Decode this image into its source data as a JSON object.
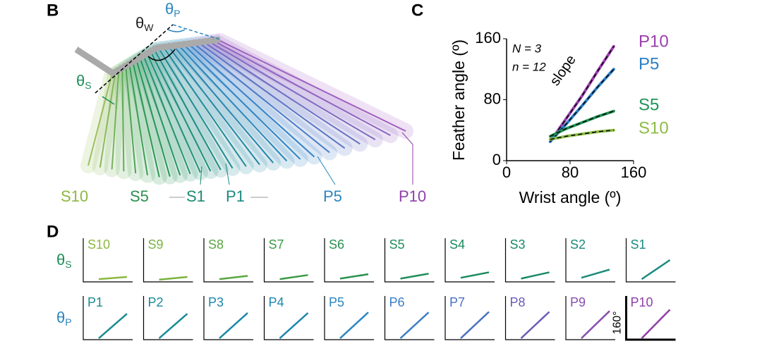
{
  "panel_labels": [
    "B",
    "C",
    "D"
  ],
  "panel_b": {
    "theta_w": {
      "symbol": "θ",
      "sub": "W"
    },
    "theta_p": {
      "symbol": "θ",
      "sub": "P"
    },
    "theta_s": {
      "symbol": "θ",
      "sub": "S"
    },
    "feather_labels": [
      "S10",
      "S5",
      "S1",
      "P1",
      "P5",
      "P10"
    ]
  },
  "panel_d": {
    "row_labels": [
      {
        "symbol": "θ",
        "sub": "S"
      },
      {
        "symbol": "θ",
        "sub": "P"
      }
    ],
    "scale_bar": "160°"
  },
  "chart_data": [
    {
      "type": "line",
      "x_label": "Wrist angle (º)",
      "y_label": "Feather angle (º)",
      "annotations": [
        "N = 3",
        "n = 12",
        "slope"
      ],
      "x": [
        55,
        75,
        95,
        115,
        135
      ],
      "xlim": [
        0,
        160
      ],
      "xticks": [
        0,
        80,
        160
      ],
      "ylim": [
        0,
        160
      ],
      "yticks": [
        0,
        80,
        160
      ],
      "series": [
        {
          "name": "P10",
          "color": "#9b3fae",
          "values": [
            25,
            55,
            85,
            118,
            150
          ]
        },
        {
          "name": "P5",
          "color": "#2b7fc4",
          "values": [
            25,
            48,
            72,
            97,
            120
          ]
        },
        {
          "name": "S5",
          "color": "#1f9457",
          "values": [
            32,
            42,
            50,
            58,
            65
          ]
        },
        {
          "name": "S10",
          "color": "#8cbd45",
          "values": [
            28,
            32,
            35,
            38,
            40
          ]
        }
      ]
    },
    {
      "type": "mini",
      "title": "S10",
      "color": "#8cb840",
      "values": [
        10,
        18
      ],
      "ylim": [
        0,
        160
      ]
    },
    {
      "type": "mini",
      "title": "S9",
      "color": "#7ab340",
      "values": [
        8,
        18
      ],
      "ylim": [
        0,
        160
      ]
    },
    {
      "type": "mini",
      "title": "S8",
      "color": "#5aa640",
      "values": [
        10,
        22
      ],
      "ylim": [
        0,
        160
      ]
    },
    {
      "type": "mini",
      "title": "S7",
      "color": "#3c9a45",
      "values": [
        10,
        25
      ],
      "ylim": [
        0,
        160
      ]
    },
    {
      "type": "mini",
      "title": "S6",
      "color": "#2a9150",
      "values": [
        12,
        28
      ],
      "ylim": [
        0,
        160
      ]
    },
    {
      "type": "mini",
      "title": "S5",
      "color": "#1e8f5a",
      "values": [
        12,
        30
      ],
      "ylim": [
        0,
        160
      ]
    },
    {
      "type": "mini",
      "title": "S4",
      "color": "#1a8a5e",
      "values": [
        15,
        35
      ],
      "ylim": [
        0,
        160
      ]
    },
    {
      "type": "mini",
      "title": "S3",
      "color": "#1a8a6a",
      "values": [
        12,
        35
      ],
      "ylim": [
        0,
        160
      ]
    },
    {
      "type": "mini",
      "title": "S2",
      "color": "#1a8a7a",
      "values": [
        15,
        45
      ],
      "ylim": [
        0,
        160
      ]
    },
    {
      "type": "mini",
      "title": "S1",
      "color": "#1a8a80",
      "values": [
        10,
        80
      ],
      "ylim": [
        0,
        160
      ]
    },
    {
      "type": "mini",
      "title": "P1",
      "color": "#1a8a90",
      "values": [
        5,
        95
      ],
      "ylim": [
        0,
        160
      ]
    },
    {
      "type": "mini",
      "title": "P2",
      "color": "#1a8a9a",
      "values": [
        5,
        95
      ],
      "ylim": [
        0,
        160
      ]
    },
    {
      "type": "mini",
      "title": "P3",
      "color": "#1a88a8",
      "values": [
        5,
        98
      ],
      "ylim": [
        0,
        160
      ]
    },
    {
      "type": "mini",
      "title": "P4",
      "color": "#1e86b0",
      "values": [
        5,
        98
      ],
      "ylim": [
        0,
        160
      ]
    },
    {
      "type": "mini",
      "title": "P5",
      "color": "#2a86c0",
      "values": [
        5,
        100
      ],
      "ylim": [
        0,
        160
      ]
    },
    {
      "type": "mini",
      "title": "P6",
      "color": "#3a7ec8",
      "values": [
        5,
        100
      ],
      "ylim": [
        0,
        160
      ]
    },
    {
      "type": "mini",
      "title": "P7",
      "color": "#4a70c0",
      "values": [
        5,
        102
      ],
      "ylim": [
        0,
        160
      ]
    },
    {
      "type": "mini",
      "title": "P8",
      "color": "#6a5cb8",
      "values": [
        5,
        102
      ],
      "ylim": [
        0,
        160
      ]
    },
    {
      "type": "mini",
      "title": "P9",
      "color": "#8a4fb0",
      "values": [
        5,
        105
      ],
      "ylim": [
        0,
        160
      ]
    },
    {
      "type": "mini",
      "title": "P10",
      "color": "#9040a8",
      "values": [
        5,
        110
      ],
      "ylim": [
        0,
        160
      ]
    }
  ]
}
